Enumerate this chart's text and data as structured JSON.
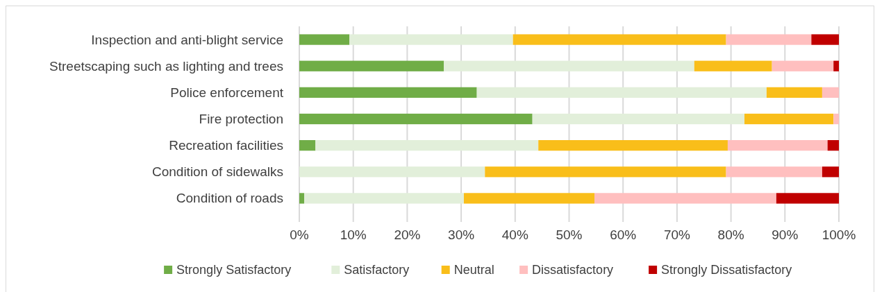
{
  "chart_data": {
    "type": "bar",
    "orientation": "horizontal",
    "stacked": true,
    "categories": [
      "Inspection and anti-blight service",
      "Streetscaping such as lighting and trees",
      "Police enforcement",
      "Fire protection",
      "Recreation facilities",
      "Condition of sidewalks",
      "Condition of roads"
    ],
    "series": [
      {
        "name": "Strongly Satisfactory",
        "color": "#70ad47",
        "values": [
          9.3,
          26.8,
          32.9,
          43.2,
          3.0,
          0,
          0.9
        ]
      },
      {
        "name": "Satisfactory",
        "color": "#e2efda",
        "values": [
          30.3,
          46.4,
          53.7,
          39.3,
          41.3,
          34.4,
          29.6
        ]
      },
      {
        "name": "Neutral",
        "color": "#f9be1a",
        "values": [
          39.5,
          14.4,
          10.3,
          16.5,
          35.1,
          44.7,
          24.2
        ]
      },
      {
        "name": "Dissatisfactory",
        "color": "#ffbfbf",
        "values": [
          15.8,
          11.4,
          3.1,
          1.0,
          18.5,
          17.8,
          33.7
        ]
      },
      {
        "name": "Strongly Dissatisfactory",
        "color": "#c00000",
        "values": [
          5.1,
          1.0,
          0,
          0,
          2.1,
          3.1,
          11.6
        ]
      }
    ],
    "xlim": [
      0,
      100
    ],
    "xticks": [
      {
        "value": 0,
        "label": "0%"
      },
      {
        "value": 10,
        "label": "10%"
      },
      {
        "value": 20,
        "label": "20%"
      },
      {
        "value": 30,
        "label": "30%"
      },
      {
        "value": 40,
        "label": "40%"
      },
      {
        "value": 50,
        "label": "50%"
      },
      {
        "value": 60,
        "label": "60%"
      },
      {
        "value": 70,
        "label": "70%"
      },
      {
        "value": 80,
        "label": "80%"
      },
      {
        "value": 90,
        "label": "90%"
      },
      {
        "value": 100,
        "label": "100%"
      }
    ],
    "grid": "x",
    "legend": "bottom"
  }
}
